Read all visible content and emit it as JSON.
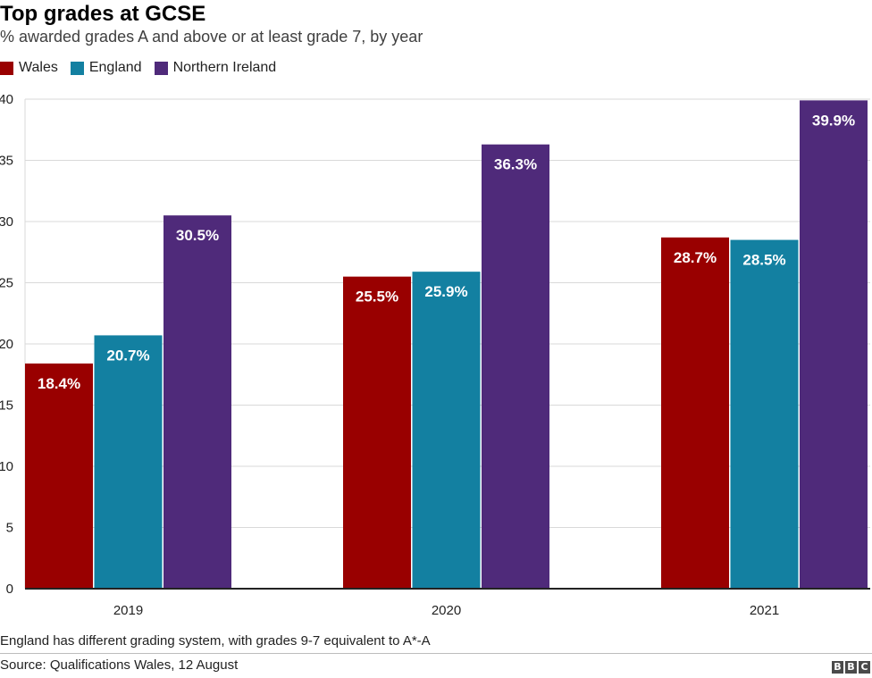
{
  "header": {
    "title": "Top grades at GCSE",
    "subtitle": "% awarded grades A and above or at least grade 7, by year"
  },
  "colors": {
    "Wales": "#990000",
    "England": "#1380A1",
    "Northern Ireland": "#4F2A7A",
    "grid": "#d9d9d9",
    "axis": "#222222"
  },
  "chart_data": {
    "type": "bar",
    "title": "Top grades at GCSE",
    "subtitle": "% awarded grades A and above or at least grade 7, by year",
    "categories": [
      "2019",
      "2020",
      "2021"
    ],
    "series": [
      {
        "name": "Wales",
        "values": [
          18.4,
          25.5,
          28.7
        ],
        "labels": [
          "18.4%",
          "25.5%",
          "28.7%"
        ]
      },
      {
        "name": "England",
        "values": [
          20.7,
          25.9,
          28.5
        ],
        "labels": [
          "20.7%",
          "25.9%",
          "28.5%"
        ]
      },
      {
        "name": "Northern Ireland",
        "values": [
          30.5,
          36.3,
          39.9
        ],
        "labels": [
          "30.5%",
          "36.3%",
          "39.9%"
        ]
      }
    ],
    "ylim": [
      0,
      40
    ],
    "yticks": [
      "0",
      "5",
      "10",
      "15",
      "20",
      "25",
      "30",
      "35",
      "40"
    ],
    "xlabel": "",
    "ylabel": "",
    "grid": true,
    "legend": "top-left"
  },
  "footer": {
    "note": "England has different grading system, with grades 9-7 equivalent to A*-A",
    "source": "Source: Qualifications Wales, 12 August",
    "logo_letters": [
      "B",
      "B",
      "C"
    ]
  }
}
